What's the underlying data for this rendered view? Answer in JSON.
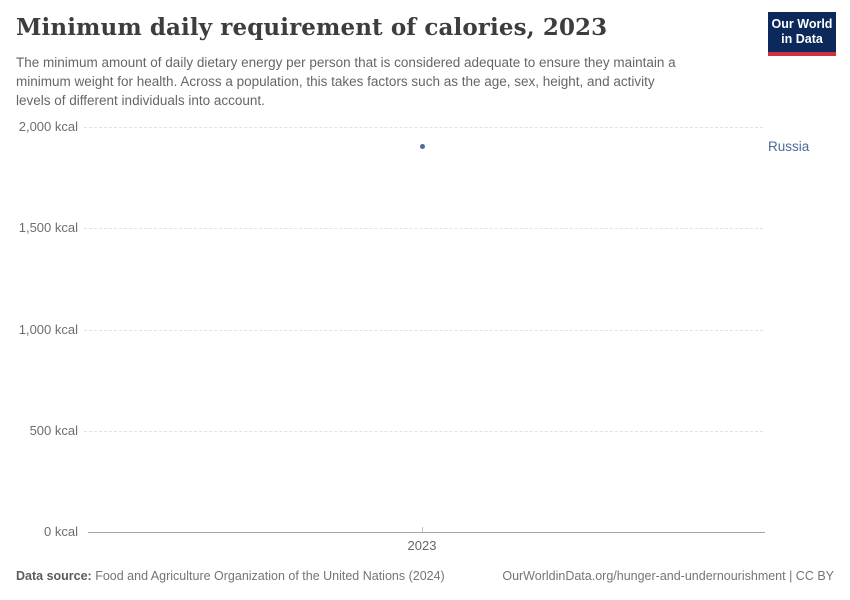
{
  "header": {
    "title": "Minimum daily requirement of calories, 2023",
    "subtitle_lines": [
      "The minimum amount of daily dietary energy per person that is considered adequate to ensure they maintain a",
      "minimum weight for health. Across a population, this takes factors such as the age, sex, height, and activity",
      "levels of different individuals into account."
    ],
    "logo": {
      "line1": "Our World",
      "line2": "in Data",
      "bg_color": "#0b2a5b",
      "stripe_color": "#cf303e"
    }
  },
  "chart": {
    "y_axis": {
      "labels": [
        "2,000 kcal",
        "1,500 kcal",
        "1,000 kcal",
        "500 kcal",
        "0 kcal"
      ]
    },
    "x_axis": {
      "tick_label": "2023"
    },
    "point": {
      "entity": "Russia",
      "color": "#4C6A9C"
    }
  },
  "footer": {
    "datasource_label": "Data source:",
    "datasource_text": " Food and Agriculture Organization of the United Nations (2024)",
    "url_note": "OurWorldinData.org/hunger-and-undernourishment | CC BY"
  },
  "chart_data": {
    "type": "scatter",
    "title": "Minimum daily requirement of calories, 2023",
    "series": [
      {
        "name": "Russia",
        "x": [
          2023
        ],
        "values": [
          1905
        ]
      }
    ],
    "xlabel": "",
    "ylabel": "kcal",
    "xticks": [
      "2023"
    ],
    "yticks": [
      0,
      500,
      1000,
      1500,
      2000
    ],
    "ytick_labels": [
      "0 kcal",
      "500 kcal",
      "1,000 kcal",
      "1,500 kcal",
      "2,000 kcal"
    ],
    "ylim": [
      0,
      2000
    ],
    "grid": "horizontal dashed",
    "legend_position": "right of point",
    "point_color": "#4C6A9C"
  }
}
